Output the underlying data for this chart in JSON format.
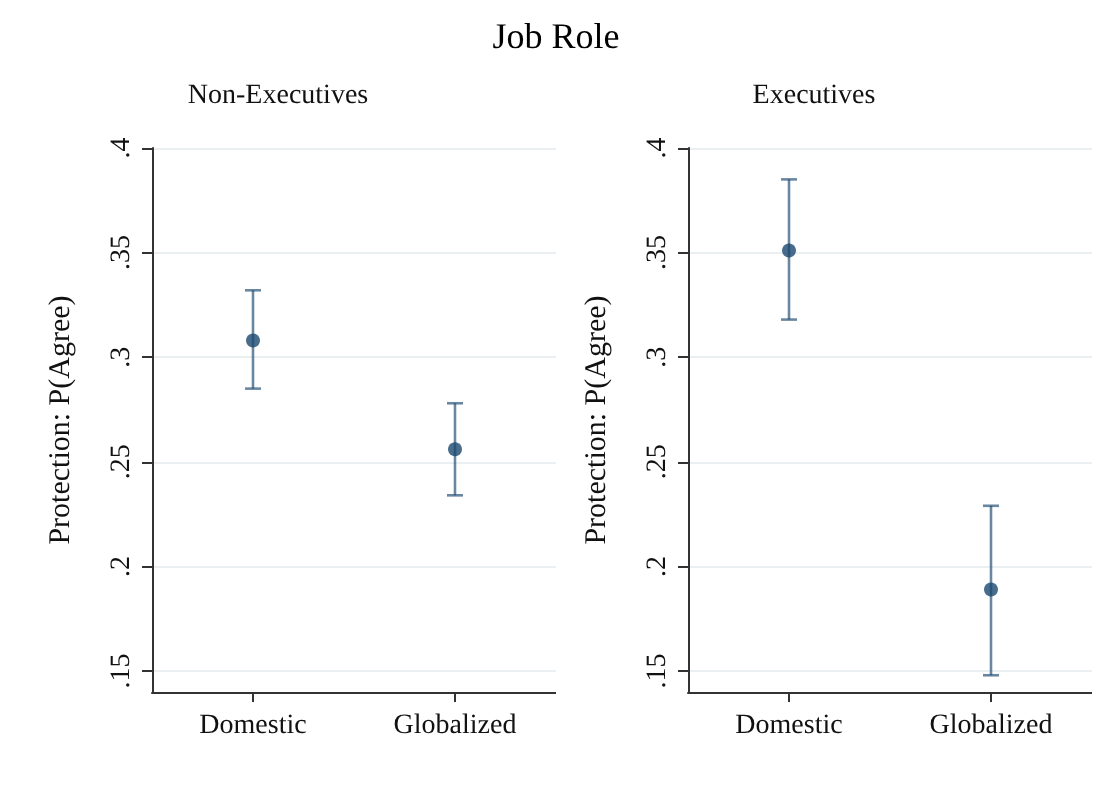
{
  "chart_data": [
    {
      "type": "scatter",
      "title": "Job Role",
      "subtitle": "Non-Executives",
      "ylabel": "Protection: P(Agree)",
      "categories": [
        "Domestic",
        "Globalized"
      ],
      "series": [
        {
          "color": "#1a476f",
          "values": [
            0.308,
            0.256
          ],
          "errors": [
            [
              0.285,
              0.332
            ],
            [
              0.234,
              0.278
            ]
          ]
        }
      ],
      "ylim": [
        0.14,
        0.4
      ],
      "yticks": [
        {
          "value": 0.15,
          "label": ".15"
        },
        {
          "value": 0.2,
          "label": ".2"
        },
        {
          "value": 0.25,
          "label": ".25"
        },
        {
          "value": 0.3,
          "label": ".3"
        },
        {
          "value": 0.35,
          "label": ".35"
        },
        {
          "value": 0.4,
          "label": ".4"
        }
      ],
      "grid": "y",
      "marker": "circle"
    },
    {
      "type": "scatter",
      "subtitle": "Executives",
      "ylabel": "Protection: P(Agree)",
      "categories": [
        "Domestic",
        "Globalized"
      ],
      "series": [
        {
          "color": "#1a476f",
          "values": [
            0.351,
            0.189
          ],
          "errors": [
            [
              0.318,
              0.385
            ],
            [
              0.148,
              0.229
            ]
          ]
        }
      ],
      "ylim": [
        0.14,
        0.4
      ],
      "yticks": [
        {
          "value": 0.15,
          "label": ".15"
        },
        {
          "value": 0.2,
          "label": ".2"
        },
        {
          "value": 0.25,
          "label": ".25"
        },
        {
          "value": 0.3,
          "label": ".3"
        },
        {
          "value": 0.35,
          "label": ".35"
        },
        {
          "value": 0.4,
          "label": ".4"
        }
      ],
      "grid": "y",
      "marker": "circle"
    }
  ]
}
